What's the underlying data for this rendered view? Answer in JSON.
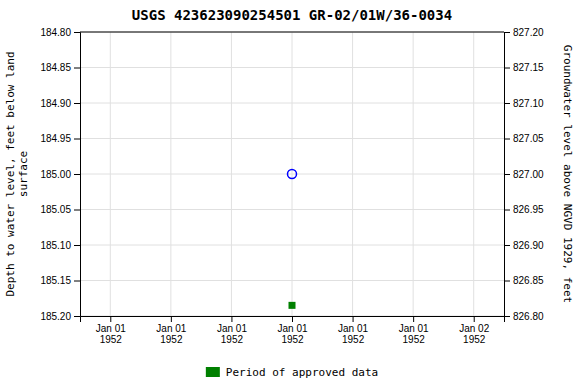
{
  "chart_data": {
    "type": "scatter",
    "title": "USGS 423623090254501 GR-02/01W/36-0034",
    "y_label": "Depth to water level, feet below land\nsurface",
    "y2_label": "Groundwater level above NGVD 1929, feet",
    "categories": [
      "Jan 01\n1952",
      "Jan 01\n1952",
      "Jan 01\n1952",
      "Jan 01\n1952",
      "Jan 01\n1952",
      "Jan 01\n1952",
      "Jan 02\n1952"
    ],
    "series": [
      {
        "color": "blue",
        "marker": "open_circle",
        "values": [
          null,
          null,
          null,
          185.0,
          null,
          null,
          null
        ]
      },
      {
        "name": "Period of approved data",
        "color": "green",
        "marker": "square",
        "values": [
          null,
          null,
          null,
          185.185,
          null,
          null,
          null
        ]
      }
    ],
    "ylim": [
      185.2,
      184.8
    ],
    "yticks": [
      {
        "value": 184.8,
        "label": "184.80"
      },
      {
        "value": 184.85,
        "label": "184.85"
      },
      {
        "value": 184.9,
        "label": "184.90"
      },
      {
        "value": 184.95,
        "label": "184.95"
      },
      {
        "value": 185.0,
        "label": "185.00"
      },
      {
        "value": 185.05,
        "label": "185.05"
      },
      {
        "value": 185.1,
        "label": "185.10"
      },
      {
        "value": 185.15,
        "label": "185.15"
      },
      {
        "value": 185.2,
        "label": "185.20"
      }
    ],
    "y2lim": [
      826.8,
      827.2
    ],
    "y2ticks": [
      {
        "value": 827.2,
        "label": "827.20"
      },
      {
        "value": 827.15,
        "label": "827.15"
      },
      {
        "value": 827.1,
        "label": "827.10"
      },
      {
        "value": 827.05,
        "label": "827.05"
      },
      {
        "value": 827.0,
        "label": "827.00"
      },
      {
        "value": 826.95,
        "label": "826.95"
      },
      {
        "value": 826.9,
        "label": "826.90"
      },
      {
        "value": 826.85,
        "label": "826.85"
      },
      {
        "value": 826.8,
        "label": "826.80"
      }
    ],
    "grid": true,
    "legend": "bottom"
  }
}
